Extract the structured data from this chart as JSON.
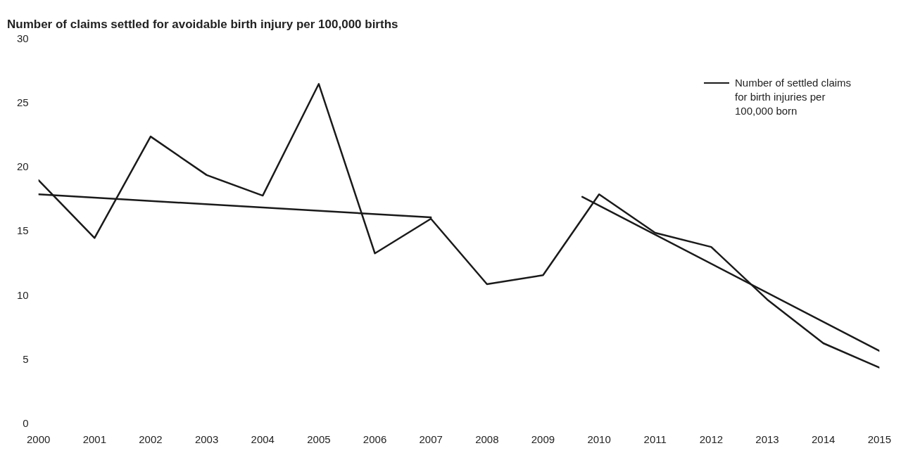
{
  "chart_data": {
    "type": "line",
    "title": "Number of claims settled for avoidable birth injury per 100,000 births",
    "x": [
      2000,
      2001,
      2002,
      2003,
      2004,
      2005,
      2006,
      2007,
      2008,
      2009,
      2010,
      2011,
      2012,
      2013,
      2014,
      2015
    ],
    "series": [
      {
        "name": "Number of settled claims for birth injuries per 100,000 born",
        "color": "#1a1a1a",
        "values": [
          19,
          14.5,
          22.4,
          19.4,
          17.8,
          26.5,
          13.3,
          16.0,
          10.9,
          11.6,
          17.9,
          14.9,
          13.8,
          9.7,
          6.3,
          4.4
        ]
      },
      {
        "color": "#1a1a1a",
        "x": [
          2000,
          2007
        ],
        "values": [
          17.9,
          16.1
        ]
      },
      {
        "color": "#1a1a1a",
        "x": [
          2009.7,
          2015
        ],
        "values": [
          17.7,
          5.7
        ]
      }
    ],
    "xlim": [
      2000,
      2015
    ],
    "xticks": [
      2000,
      2001,
      2002,
      2003,
      2004,
      2005,
      2006,
      2007,
      2008,
      2009,
      2010,
      2011,
      2012,
      2013,
      2014,
      2015
    ],
    "ylim": [
      0,
      30
    ],
    "yticks": [
      0,
      5,
      10,
      15,
      20,
      25,
      30
    ],
    "grid": false,
    "legend": "top right",
    "marker": "none",
    "line_style": "solid"
  }
}
